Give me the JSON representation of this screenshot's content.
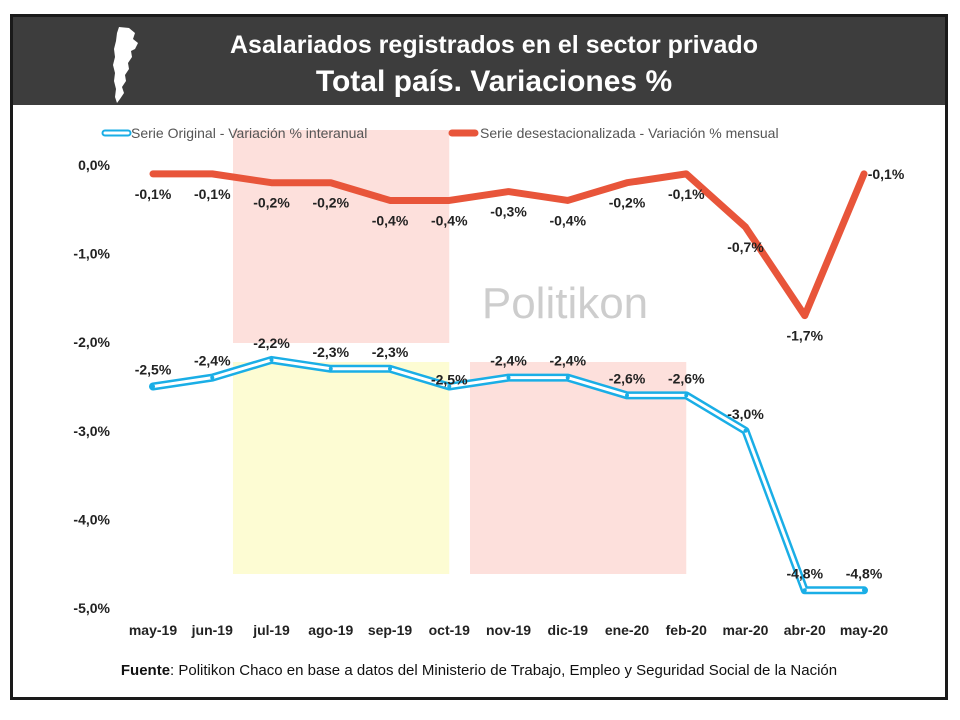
{
  "header": {
    "title_line1": "Asalariados registrados en el sector privado",
    "title_line2": "Total país. Variaciones %"
  },
  "watermark": "Politikon",
  "source": {
    "label": "Fuente",
    "text": ": Politikon Chaco en base a datos del Ministerio  de Trabajo, Empleo y Seguridad Social de la Nación"
  },
  "colors": {
    "original": "#1aaee6",
    "desest": "#e8553a",
    "shade_red": "#fde0dc",
    "shade_yellow": "#fdfcd3",
    "header_bg": "#3d3d3d"
  },
  "chart_data": {
    "type": "line",
    "categories": [
      "may-19",
      "jun-19",
      "jul-19",
      "ago-19",
      "sep-19",
      "oct-19",
      "nov-19",
      "dic-19",
      "ene-20",
      "feb-20",
      "mar-20",
      "abr-20",
      "may-20"
    ],
    "series": [
      {
        "name": "Serie Original - Variación % interanual",
        "values": [
          -2.5,
          -2.4,
          -2.2,
          -2.3,
          -2.3,
          -2.5,
          -2.4,
          -2.4,
          -2.6,
          -2.6,
          -3.0,
          -4.8,
          -4.8
        ],
        "labels": [
          "-2,5%",
          "-2,4%",
          "-2,2%",
          "-2,3%",
          "-2,3%",
          "-2,5%",
          "-2,4%",
          "-2,4%",
          "-2,6%",
          "-2,6%",
          "-3,0%",
          "-4,8%",
          "-4,8%"
        ]
      },
      {
        "name": "Serie desestacionalizada - Variación % mensual",
        "values": [
          -0.1,
          -0.1,
          -0.2,
          -0.2,
          -0.4,
          -0.4,
          -0.3,
          -0.4,
          -0.2,
          -0.1,
          -0.7,
          -1.7,
          -0.1
        ],
        "labels": [
          "-0,1%",
          "-0,1%",
          "-0,2%",
          "-0,2%",
          "-0,4%",
          "-0,4%",
          "-0,3%",
          "-0,4%",
          "-0,2%",
          "-0,1%",
          "-0,7%",
          "-1,7%",
          "-0,1%"
        ]
      }
    ],
    "yticks": [
      0,
      -1,
      -2,
      -3,
      -4,
      -5
    ],
    "ytick_labels": [
      "0,0%",
      "-1,0%",
      "-2,0%",
      "-3,0%",
      "-4,0%",
      "-5,0%"
    ],
    "ylim": [
      -5,
      0
    ],
    "legend_position": "top",
    "grid": false
  }
}
